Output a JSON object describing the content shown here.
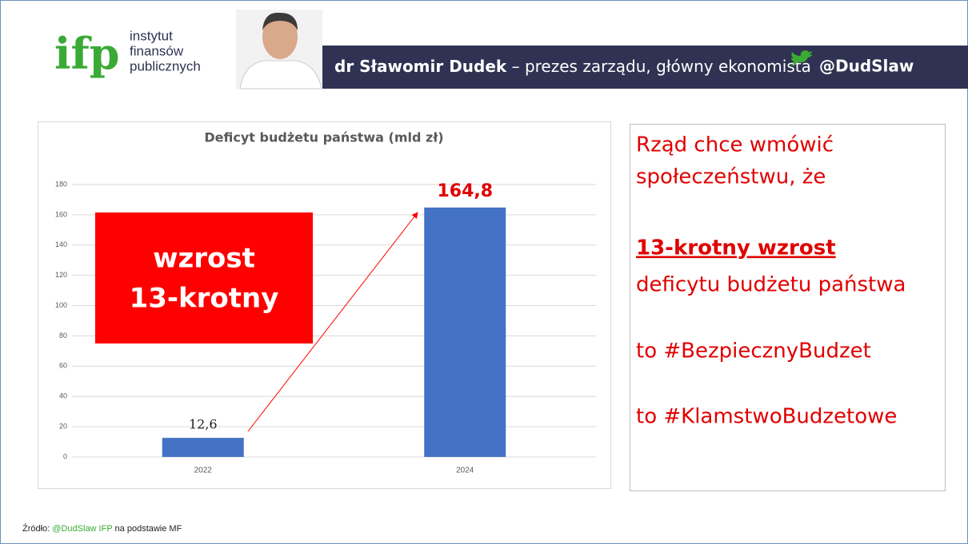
{
  "header": {
    "logo": "ifp",
    "logo_text": [
      "instytut",
      "finansów",
      "publicznych"
    ],
    "name": "dr Sławomir Dudek",
    "role": "– prezes zarządu, główny ekonomista",
    "twitter": "@DudSlaw"
  },
  "chart_data": {
    "type": "bar",
    "title": "Deficyt budżetu państwa (mld zł)",
    "categories": [
      "2022",
      "2024"
    ],
    "values": [
      12.6,
      164.8
    ],
    "value_labels": [
      "12,6",
      "164,8"
    ],
    "color": "#4472c4",
    "ylim": [
      0,
      180
    ],
    "yticks": [
      0,
      20,
      40,
      60,
      80,
      100,
      120,
      140,
      160,
      180
    ],
    "grid": true,
    "annotation": [
      "wzrost",
      "13-krotny"
    ]
  },
  "panel": {
    "lines": [
      "Rząd chce wmówić",
      "społeczeństwu, że",
      "13-krotny wzrost",
      "deficytu budżetu państwa",
      "to #BezpiecznyBudzet",
      "to #KlamstwoBudzetowe"
    ]
  },
  "footer": {
    "label": "Źródło:",
    "handle": "@DudSlaw IFP",
    "rest": "na podstawie MF"
  }
}
